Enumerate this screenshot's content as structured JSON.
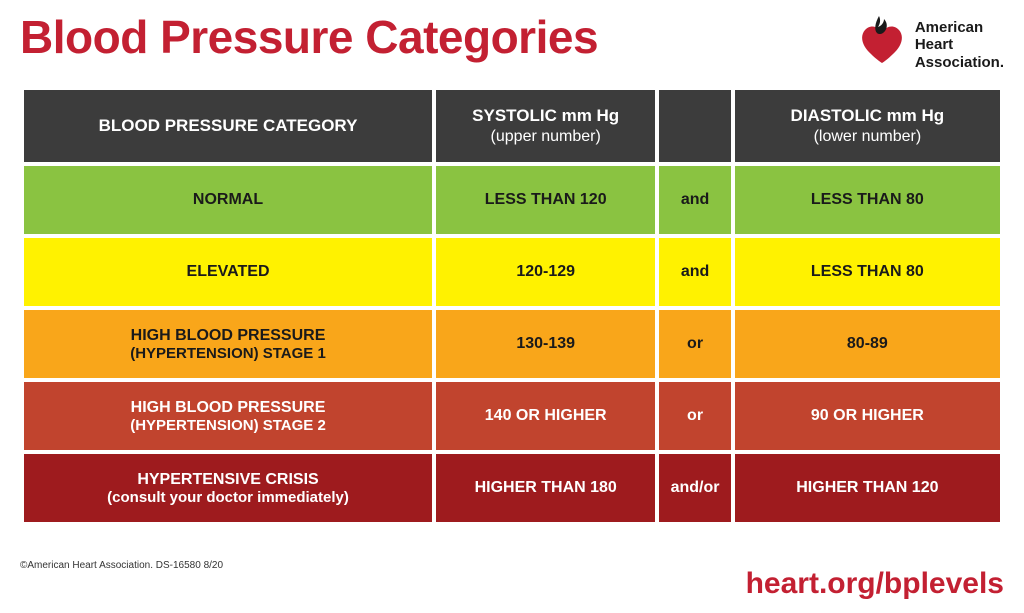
{
  "colors": {
    "title": "#c32032",
    "header_bg": "#3c3c3c",
    "header_text": "#ffffff",
    "link": "#c32032",
    "logo_red": "#c32032",
    "logo_dark": "#1a1a1a"
  },
  "title": "Blood Pressure Categories",
  "logo": {
    "line1": "American",
    "line2": "Heart",
    "line3": "Association."
  },
  "headers": {
    "category": "BLOOD PRESSURE CATEGORY",
    "systolic": "SYSTOLIC mm Hg",
    "systolic_sub": "(upper number)",
    "diastolic": "DIASTOLIC mm Hg",
    "diastolic_sub": "(lower number)"
  },
  "rows": [
    {
      "bg": "#8ac341",
      "text_class": "light-row",
      "category": "NORMAL",
      "category_sub": "",
      "systolic": "LESS THAN 120",
      "conj": "and",
      "diastolic": "LESS THAN 80"
    },
    {
      "bg": "#fff200",
      "text_class": "light-row",
      "category": "ELEVATED",
      "category_sub": "",
      "systolic": "120-129",
      "conj": "and",
      "diastolic": "LESS THAN 80"
    },
    {
      "bg": "#f9a61a",
      "text_class": "light-row",
      "category": "HIGH BLOOD PRESSURE",
      "category_sub": "(HYPERTENSION) STAGE 1",
      "systolic": "130-139",
      "conj": "or",
      "diastolic": "80-89"
    },
    {
      "bg": "#c1442e",
      "text_class": "dark-row",
      "category": "HIGH BLOOD PRESSURE",
      "category_sub": "(HYPERTENSION) STAGE 2",
      "systolic": "140 OR HIGHER",
      "conj": "or",
      "diastolic": "90 OR HIGHER"
    },
    {
      "bg": "#9e1b1e",
      "text_class": "dark-row",
      "category": "HYPERTENSIVE CRISIS",
      "category_sub": "(consult your doctor immediately)",
      "systolic": "HIGHER THAN 180",
      "conj": "and/or",
      "diastolic": "HIGHER THAN 120"
    }
  ],
  "copyright": "©American Heart Association. DS-16580 8/20",
  "link": "heart.org/bplevels"
}
